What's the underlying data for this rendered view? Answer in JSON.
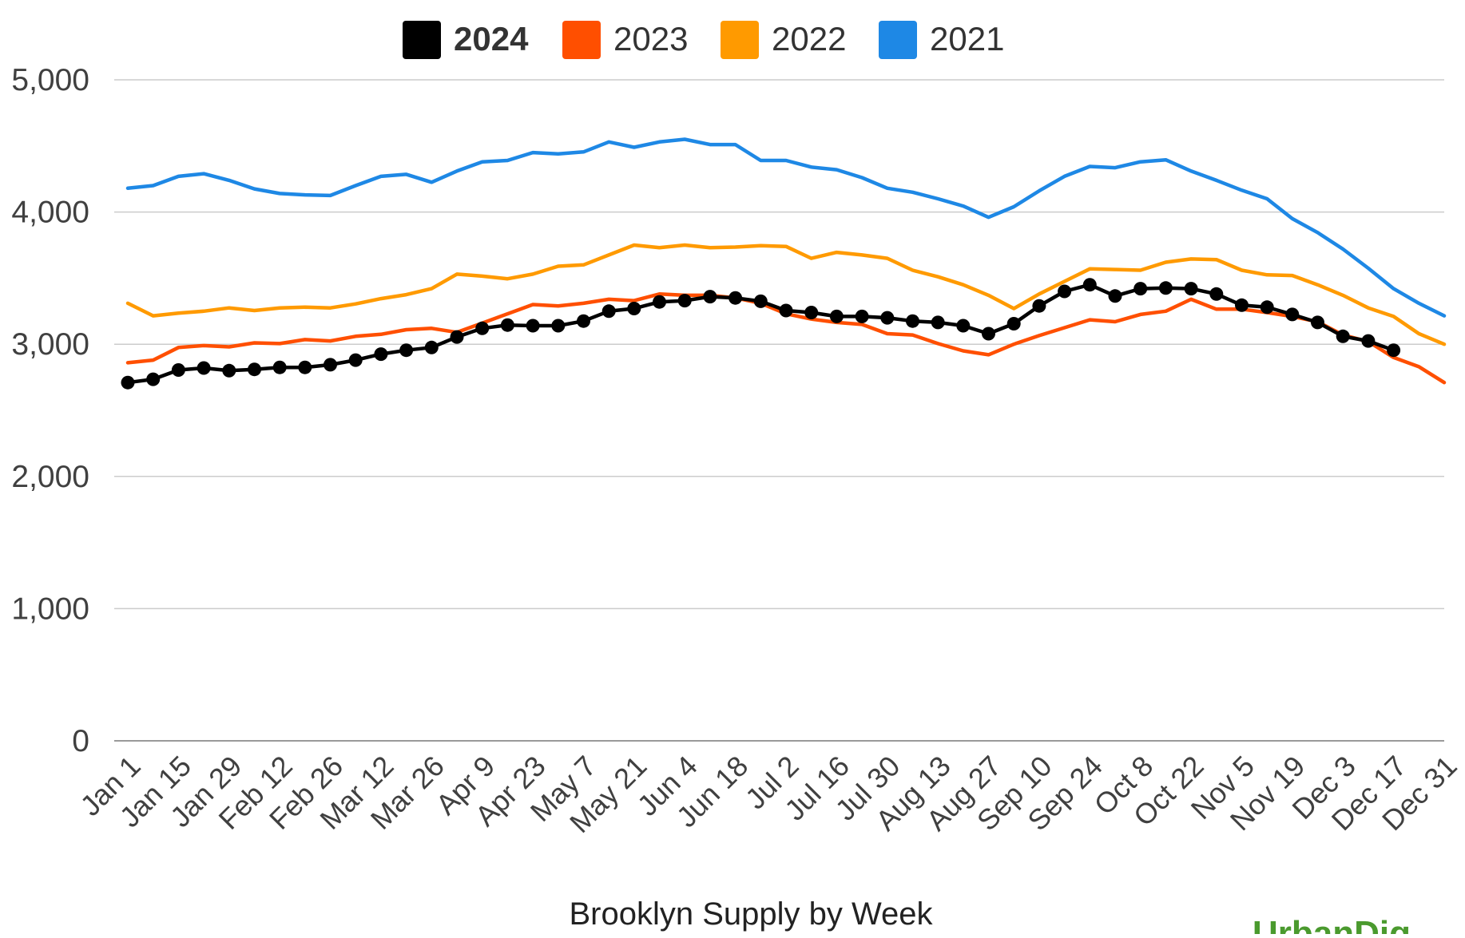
{
  "chart_data": {
    "type": "line",
    "title": "Brooklyn Supply by Week",
    "xlabel": "",
    "ylabel": "",
    "ylim": [
      0,
      5000
    ],
    "y_ticks": [
      "0",
      "1,000",
      "2,000",
      "3,000",
      "4,000",
      "5,000"
    ],
    "y_tick_values": [
      0,
      1000,
      2000,
      3000,
      4000,
      5000
    ],
    "x_tick_labels": [
      "Jan 1",
      "Jan 15",
      "Jan 29",
      "Feb 12",
      "Feb 26",
      "Mar 12",
      "Mar 26",
      "Apr 9",
      "Apr 23",
      "May 7",
      "May 21",
      "Jun 4",
      "Jun 18",
      "Jul 2",
      "Jul 16",
      "Jul 30",
      "Aug 13",
      "Aug 27",
      "Sep 10",
      "Sep 24",
      "Oct 8",
      "Oct 22",
      "Nov 5",
      "Nov 19",
      "Dec 3",
      "Dec 17",
      "Dec 31"
    ],
    "grid": true,
    "legend_position": "top-center",
    "series": [
      {
        "name": "2024",
        "color": "#000000",
        "markers": true,
        "bold_legend": true,
        "values": [
          2710,
          2735,
          2805,
          2820,
          2800,
          2810,
          2825,
          2825,
          2845,
          2880,
          2925,
          2955,
          2975,
          3055,
          3120,
          3145,
          3140,
          3140,
          3175,
          3250,
          3270,
          3320,
          3330,
          3360,
          3350,
          3325,
          3255,
          3240,
          3210,
          3210,
          3200,
          3175,
          3165,
          3140,
          3080,
          3155,
          3290,
          3400,
          3450,
          3365,
          3420,
          3425,
          3420,
          3380,
          3295,
          3280,
          3225,
          3165,
          3060,
          3025,
          2955
        ]
      },
      {
        "name": "2023",
        "color": "#ff4f00",
        "markers": false,
        "values": [
          2860,
          2880,
          2975,
          2990,
          2980,
          3010,
          3005,
          3035,
          3025,
          3060,
          3075,
          3110,
          3120,
          3090,
          3160,
          3230,
          3300,
          3290,
          3310,
          3340,
          3330,
          3380,
          3370,
          3370,
          3350,
          3310,
          3230,
          3190,
          3165,
          3150,
          3080,
          3070,
          3005,
          2950,
          2920,
          3000,
          3065,
          3125,
          3185,
          3170,
          3225,
          3250,
          3340,
          3265,
          3265,
          3240,
          3210,
          3170,
          3070,
          3020,
          2900,
          2830,
          2710
        ]
      },
      {
        "name": "2022",
        "color": "#ff9a00",
        "markers": false,
        "values": [
          3310,
          3215,
          3235,
          3250,
          3275,
          3255,
          3275,
          3280,
          3275,
          3305,
          3345,
          3375,
          3420,
          3530,
          3515,
          3495,
          3530,
          3590,
          3600,
          3675,
          3750,
          3730,
          3750,
          3730,
          3735,
          3745,
          3740,
          3650,
          3695,
          3675,
          3650,
          3560,
          3510,
          3450,
          3370,
          3270,
          3380,
          3475,
          3570,
          3565,
          3560,
          3620,
          3645,
          3640,
          3560,
          3525,
          3520,
          3450,
          3370,
          3275,
          3210,
          3080,
          3000
        ]
      },
      {
        "name": "2021",
        "color": "#1e88e5",
        "markers": false,
        "values": [
          4180,
          4200,
          4270,
          4290,
          4240,
          4175,
          4140,
          4130,
          4125,
          4200,
          4270,
          4285,
          4225,
          4310,
          4380,
          4390,
          4450,
          4440,
          4455,
          4530,
          4490,
          4530,
          4550,
          4510,
          4510,
          4390,
          4390,
          4340,
          4320,
          4260,
          4180,
          4150,
          4100,
          4045,
          3960,
          4040,
          4160,
          4270,
          4345,
          4335,
          4380,
          4395,
          4310,
          4240,
          4165,
          4100,
          3950,
          3845,
          3720,
          3575,
          3420,
          3310,
          3215
        ]
      }
    ]
  },
  "legend": {
    "items": [
      {
        "label": "2024",
        "color": "#000000"
      },
      {
        "label": "2023",
        "color": "#ff4f00"
      },
      {
        "label": "2022",
        "color": "#ff9a00"
      },
      {
        "label": "2021",
        "color": "#1e88e5"
      }
    ]
  },
  "logo": {
    "text": "UrbanDig",
    "color": "#4a9a2e"
  }
}
